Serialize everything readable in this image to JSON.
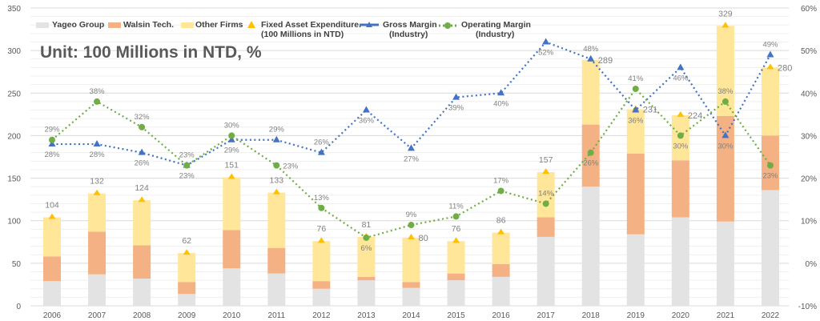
{
  "chart_data": {
    "type": "bar",
    "subtitle": "Unit: 100 Millions in NTD, %",
    "categories": [
      "2006",
      "2007",
      "2008",
      "2009",
      "2010",
      "2011",
      "2012",
      "2013",
      "2014",
      "2015",
      "2016",
      "2017",
      "2018",
      "2019",
      "2020",
      "2021",
      "2022"
    ],
    "ylim": [
      0,
      350
    ],
    "y_ticks": [
      0,
      50,
      100,
      150,
      200,
      250,
      300,
      350
    ],
    "y2lim": [
      -10,
      60
    ],
    "y2_ticks": [
      "-10%",
      "0%",
      "10%",
      "20%",
      "30%",
      "40%",
      "50%",
      "60%"
    ],
    "grid": true,
    "legend_position": "top",
    "stacked_series": [
      {
        "name": "Yageo Group",
        "color": "#e3e3e3",
        "values": [
          29,
          37,
          32,
          14,
          44,
          38,
          20,
          30,
          21,
          30,
          34,
          81,
          140,
          84,
          104,
          99,
          136
        ]
      },
      {
        "name": "Walsin Tech.",
        "color": "#f4b183",
        "values": [
          29,
          50,
          39,
          14,
          45,
          30,
          9,
          4,
          7,
          8,
          15,
          23,
          73,
          95,
          67,
          124,
          64
        ]
      },
      {
        "name": "Other Firms",
        "color": "#ffe699",
        "values": [
          46,
          45,
          53,
          34,
          62,
          65,
          47,
          47,
          52,
          38,
          37,
          53,
          76,
          52,
          53,
          106,
          80
        ]
      }
    ],
    "fixed_asset": {
      "name": "Fixed Asset Expenditure.",
      "name_line2": "(100 Millions in NTD)",
      "color": "#ffc000",
      "values": [
        104,
        132,
        124,
        62,
        151,
        133,
        76,
        81,
        80,
        76,
        86,
        157,
        289,
        231,
        224,
        329,
        280
      ]
    },
    "gross_margin": {
      "name": "Gross Margin",
      "name_line2": "(Industry)",
      "color": "#4472c4",
      "values": [
        28,
        28,
        26,
        23,
        29,
        29,
        26,
        36,
        27,
        39,
        40,
        52,
        48,
        36,
        46,
        30,
        49
      ]
    },
    "operating_margin": {
      "name": "Operating Margin",
      "name_line2": "(Industry)",
      "color": "#70ad47",
      "values": [
        29,
        38,
        32,
        23,
        30,
        23,
        13,
        6,
        9,
        11,
        17,
        14,
        26,
        41,
        30,
        38,
        23
      ]
    }
  }
}
